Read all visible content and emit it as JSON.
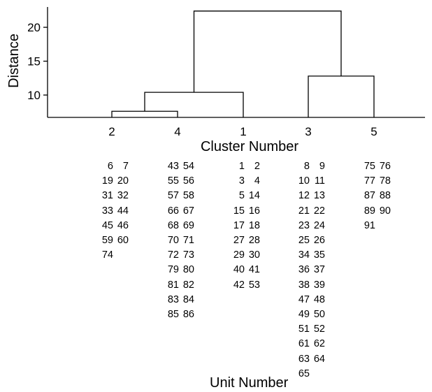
{
  "chart": {
    "type": "dendrogram",
    "ylabel": "Distance",
    "xlabel": "Cluster Number",
    "yticks": [
      10,
      15,
      20
    ],
    "ylim": [
      6.7,
      23
    ],
    "leaf_order": [
      "2",
      "4",
      "1",
      "3",
      "5"
    ],
    "merges": [
      {
        "left": "2",
        "right": "4",
        "height": 7.6
      },
      {
        "left": "2+4",
        "right": "1",
        "height": 10.4
      },
      {
        "left": "3",
        "right": "5",
        "height": 12.8
      },
      {
        "left": "2+4+1",
        "right": "3+5",
        "height": 22.4
      }
    ]
  },
  "units": {
    "title": "Unit Number",
    "clusters": [
      {
        "cluster": "2",
        "rows": [
          [
            "6",
            "7"
          ],
          [
            "19",
            "20"
          ],
          [
            "31",
            "32"
          ],
          [
            "33",
            "44"
          ],
          [
            "45",
            "46"
          ],
          [
            "59",
            "60"
          ],
          [
            "74"
          ]
        ]
      },
      {
        "cluster": "4",
        "rows": [
          [
            "43",
            "54"
          ],
          [
            "55",
            "56"
          ],
          [
            "57",
            "58"
          ],
          [
            "66",
            "67"
          ],
          [
            "68",
            "69"
          ],
          [
            "70",
            "71"
          ],
          [
            "72",
            "73"
          ],
          [
            "79",
            "80"
          ],
          [
            "81",
            "82"
          ],
          [
            "83",
            "84"
          ],
          [
            "85",
            "86"
          ]
        ]
      },
      {
        "cluster": "1",
        "rows": [
          [
            "1",
            "2"
          ],
          [
            "3",
            "4"
          ],
          [
            "5",
            "14"
          ],
          [
            "15",
            "16"
          ],
          [
            "17",
            "18"
          ],
          [
            "27",
            "28"
          ],
          [
            "29",
            "30"
          ],
          [
            "40",
            "41"
          ],
          [
            "42",
            "53"
          ]
        ]
      },
      {
        "cluster": "3",
        "rows": [
          [
            "8",
            "9"
          ],
          [
            "10",
            "11"
          ],
          [
            "12",
            "13"
          ],
          [
            "21",
            "22"
          ],
          [
            "23",
            "24"
          ],
          [
            "25",
            "26"
          ],
          [
            "34",
            "35"
          ],
          [
            "36",
            "37"
          ],
          [
            "38",
            "39"
          ],
          [
            "47",
            "48"
          ],
          [
            "49",
            "50"
          ],
          [
            "51",
            "52"
          ],
          [
            "61",
            "62"
          ],
          [
            "63",
            "64"
          ],
          [
            "65"
          ]
        ]
      },
      {
        "cluster": "5",
        "rows": [
          [
            "75",
            "76"
          ],
          [
            "77",
            "78"
          ],
          [
            "87",
            "88"
          ],
          [
            "89",
            "90"
          ],
          [
            "91"
          ]
        ]
      }
    ]
  }
}
